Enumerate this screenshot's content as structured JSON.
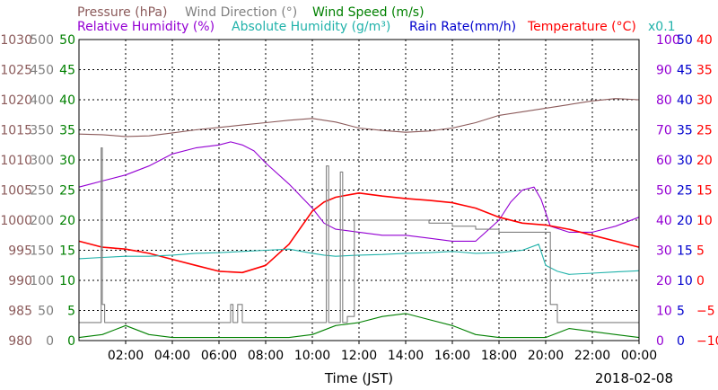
{
  "chart_data": {
    "type": "line",
    "xlabel": "Time (JST)",
    "date": "2018-02-08",
    "x_range_hours": [
      0,
      24
    ],
    "x_ticks": [
      "02:00",
      "04:00",
      "06:00",
      "08:00",
      "10:00",
      "12:00",
      "14:00",
      "16:00",
      "18:00",
      "20:00",
      "22:00",
      "00:00"
    ],
    "legend_rows": [
      [
        {
          "id": "pressure",
          "label": "Pressure (hPa)",
          "color": "#8b5a5a"
        },
        {
          "id": "wind_direction",
          "label": "Wind Direction (°)",
          "color": "#808080"
        },
        {
          "id": "wind_speed",
          "label": "Wind Speed (m/s)",
          "color": "#008000"
        }
      ],
      [
        {
          "id": "relative_humidity",
          "label": "Relative Humidity (%)",
          "color": "#9400d3"
        },
        {
          "id": "absolute_humidity",
          "label": "Absolute Humidity (g/m³)",
          "color": "#20b2aa"
        },
        {
          "id": "rain_rate",
          "label": "Rain Rate(mm/h)",
          "color": "#0000cd"
        },
        {
          "id": "temperature",
          "label": "Temperature (°C)",
          "color": "#ff0000"
        }
      ]
    ],
    "absolute_humidity_scale_note": "x0.1",
    "axes": {
      "pressure": {
        "min": 980,
        "max": 1030,
        "ticks": [
          "980",
          "985",
          "990",
          "995",
          "1000",
          "1005",
          "1010",
          "1015",
          "1020",
          "1025",
          "1030"
        ],
        "color": "#8b5a5a"
      },
      "wind_direction": {
        "min": 0,
        "max": 500,
        "ticks": [
          "0",
          "50",
          "100",
          "150",
          "200",
          "250",
          "300",
          "350",
          "400",
          "450",
          "500"
        ],
        "color": "#808080"
      },
      "wind_speed": {
        "min": 0,
        "max": 50,
        "ticks": [
          "0",
          "5",
          "10",
          "15",
          "20",
          "25",
          "30",
          "35",
          "40",
          "45",
          "50"
        ],
        "color": "#008000"
      },
      "relative_humidity": {
        "min": 0,
        "max": 100,
        "ticks": [
          "0",
          "10",
          "20",
          "30",
          "40",
          "50",
          "60",
          "70",
          "80",
          "90",
          "100"
        ],
        "color": "#9400d3"
      },
      "rain_rate": {
        "min": 0,
        "max": 50,
        "ticks": [
          "0",
          "5",
          "10",
          "15",
          "20",
          "25",
          "30",
          "35",
          "40",
          "45",
          "50"
        ],
        "color": "#0000cd"
      },
      "temperature": {
        "min": -10,
        "max": 40,
        "ticks": [
          "−10",
          "−5",
          "0",
          "5",
          "10",
          "15",
          "20",
          "25",
          "30",
          "35",
          "40"
        ],
        "color": "#ff0000"
      }
    },
    "series": [
      {
        "id": "pressure",
        "name": "Pressure (hPa)",
        "color": "#8b5a5a",
        "axis": "pressure",
        "x": [
          0,
          1,
          2,
          3,
          4,
          5,
          6,
          7,
          8,
          9,
          10,
          11,
          12,
          13,
          14,
          15,
          16,
          17,
          18,
          19,
          20,
          21,
          22,
          23,
          24
        ],
        "y": [
          1014.3,
          1014.2,
          1013.9,
          1014.0,
          1014.5,
          1015.0,
          1015.4,
          1015.8,
          1016.2,
          1016.6,
          1016.9,
          1016.3,
          1015.3,
          1014.9,
          1014.6,
          1014.8,
          1015.3,
          1016.2,
          1017.4,
          1018.0,
          1018.6,
          1019.2,
          1019.8,
          1020.2,
          1020.0
        ]
      },
      {
        "id": "relative_humidity",
        "name": "Relative Humidity (%)",
        "color": "#9400d3",
        "axis": "relative_humidity",
        "x": [
          0,
          0.5,
          1,
          2,
          3,
          4,
          5,
          6,
          6.5,
          7,
          7.5,
          8,
          9,
          10,
          10.5,
          11,
          12,
          13,
          14,
          15,
          16,
          17,
          18,
          18.5,
          19,
          19.5,
          19.8,
          20.2,
          21,
          22,
          23,
          24
        ],
        "y": [
          51,
          52,
          53,
          55,
          58,
          62,
          64,
          65,
          66,
          65,
          63,
          59,
          52,
          44,
          39,
          37,
          36,
          35,
          35,
          34,
          33,
          33,
          40,
          46,
          50,
          51,
          47,
          38,
          36,
          36,
          38,
          41
        ]
      },
      {
        "id": "temperature",
        "name": "Temperature (°C)",
        "color": "#ff0000",
        "axis": "temperature",
        "x": [
          0,
          1,
          2,
          3,
          4,
          5,
          6,
          7,
          8,
          9,
          10,
          10.5,
          11,
          12,
          13,
          14,
          15,
          16,
          17,
          18,
          19,
          20,
          21,
          22,
          23,
          24
        ],
        "y": [
          6.5,
          5.5,
          5.2,
          4.5,
          3.5,
          2.5,
          1.5,
          1.3,
          2.5,
          6.0,
          11.5,
          13.0,
          13.8,
          14.5,
          14.0,
          13.6,
          13.3,
          12.9,
          12.0,
          10.5,
          9.5,
          9.2,
          8.5,
          7.5,
          6.5,
          5.5
        ]
      },
      {
        "id": "absolute_humidity",
        "name": "Absolute Humidity (g/m³)",
        "color": "#20b2aa",
        "axis": "wind_speed",
        "x": [
          0,
          1,
          2,
          3,
          4,
          5,
          6,
          7,
          8,
          9,
          10,
          10.5,
          11,
          12,
          13,
          14,
          15,
          16,
          17,
          18,
          19,
          19.7,
          20,
          20.5,
          21,
          22,
          23,
          24
        ],
        "y": [
          13.6,
          13.8,
          14.0,
          14.0,
          14.2,
          14.5,
          14.6,
          14.8,
          15.0,
          15.2,
          14.5,
          14.2,
          14.0,
          14.2,
          14.3,
          14.5,
          14.6,
          14.8,
          14.5,
          14.6,
          15.0,
          16.0,
          12.5,
          11.5,
          11.0,
          11.2,
          11.4,
          11.6
        ]
      },
      {
        "id": "wind_direction",
        "name": "Wind Direction (°)",
        "color": "#808080",
        "axis": "wind_direction",
        "step": true,
        "x": [
          0,
          0.9,
          0.95,
          1.0,
          1.1,
          2,
          3,
          4,
          5,
          6,
          6.4,
          6.5,
          6.6,
          6.8,
          7,
          7.5,
          8,
          9,
          10,
          10.1,
          10.5,
          10.6,
          10.7,
          11,
          11.2,
          11.3,
          11.5,
          11.8,
          12,
          12.5,
          13,
          14,
          15,
          16,
          17,
          18,
          19,
          20,
          20.2,
          20.5,
          21,
          22,
          23,
          24
        ],
        "y": [
          30,
          30,
          320,
          60,
          30,
          30,
          30,
          30,
          30,
          30,
          30,
          60,
          30,
          60,
          30,
          30,
          30,
          30,
          30,
          30,
          30,
          290,
          30,
          30,
          280,
          30,
          40,
          200,
          200,
          200,
          200,
          200,
          195,
          190,
          185,
          180,
          180,
          180,
          60,
          30,
          30,
          30,
          30,
          30
        ]
      },
      {
        "id": "wind_speed",
        "name": "Wind Speed (m/s)",
        "color": "#008000",
        "axis": "wind_speed",
        "x": [
          0,
          1,
          2,
          3,
          4,
          5,
          6,
          7,
          8,
          9,
          10,
          11,
          12,
          13,
          14,
          15,
          16,
          17,
          18,
          19,
          20,
          21,
          22,
          23,
          24
        ],
        "y": [
          0.5,
          1.0,
          2.5,
          1.0,
          0.5,
          0.5,
          0.5,
          0.5,
          0.5,
          0.5,
          1.0,
          2.5,
          3.0,
          4.0,
          4.5,
          3.5,
          2.5,
          1.0,
          0.5,
          0.5,
          0.5,
          2.0,
          1.5,
          1.0,
          0.5
        ]
      },
      {
        "id": "rain_rate",
        "name": "Rain Rate(mm/h)",
        "color": "#0000cd",
        "axis": "rain_rate",
        "x": [
          0,
          24
        ],
        "y": [
          0,
          0
        ]
      }
    ],
    "grid": true,
    "legend_position": "top"
  }
}
